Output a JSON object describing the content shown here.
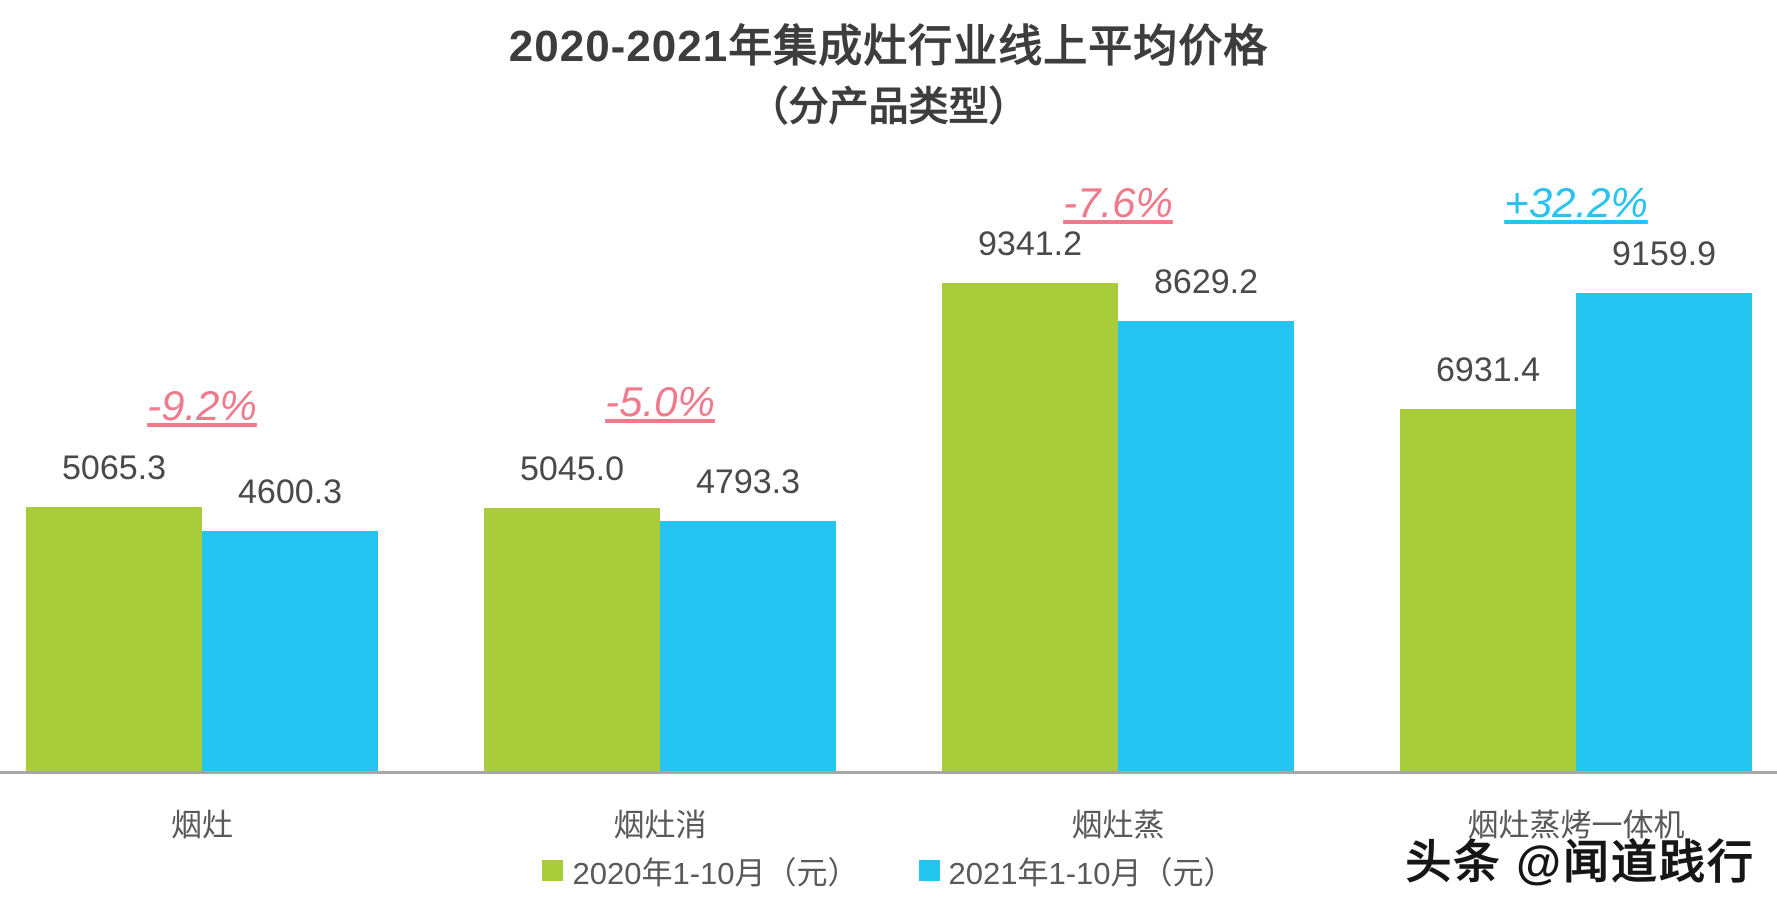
{
  "chart_data": {
    "type": "bar",
    "title": "2020-2021年集成灶行业线上平均价格",
    "subtitle": "（分产品类型）",
    "categories": [
      "烟灶",
      "烟灶消",
      "烟灶蒸",
      "烟灶蒸烤一体机"
    ],
    "series": [
      {
        "name": "2020年1-10月（元）",
        "color": "#a9cd3a",
        "values": [
          5065.3,
          5045.0,
          9341.2,
          6931.4
        ],
        "labels": [
          "5065.3",
          "5045.0",
          "9341.2",
          "6931.4"
        ]
      },
      {
        "name": "2021年1-10月（元）",
        "color": "#24c5f1",
        "values": [
          4600.3,
          4793.3,
          8629.2,
          9159.9
        ],
        "labels": [
          "4600.3",
          "4793.3",
          "8629.2",
          "9159.9"
        ]
      }
    ],
    "change_labels": [
      {
        "text": "-9.2%",
        "color": "#ef7a8b"
      },
      {
        "text": "-5.0%",
        "color": "#ef7a8b"
      },
      {
        "text": "-7.6%",
        "color": "#ef7a8b"
      },
      {
        "text": "+32.2%",
        "color": "#29c3f0"
      }
    ],
    "ylabel": "",
    "xlabel": "",
    "ylim": [
      0,
      10000
    ],
    "grid": false,
    "legend_position": "bottom",
    "axis_line_color": "#a6a6a6"
  },
  "watermark": "头条 @闻道践行"
}
